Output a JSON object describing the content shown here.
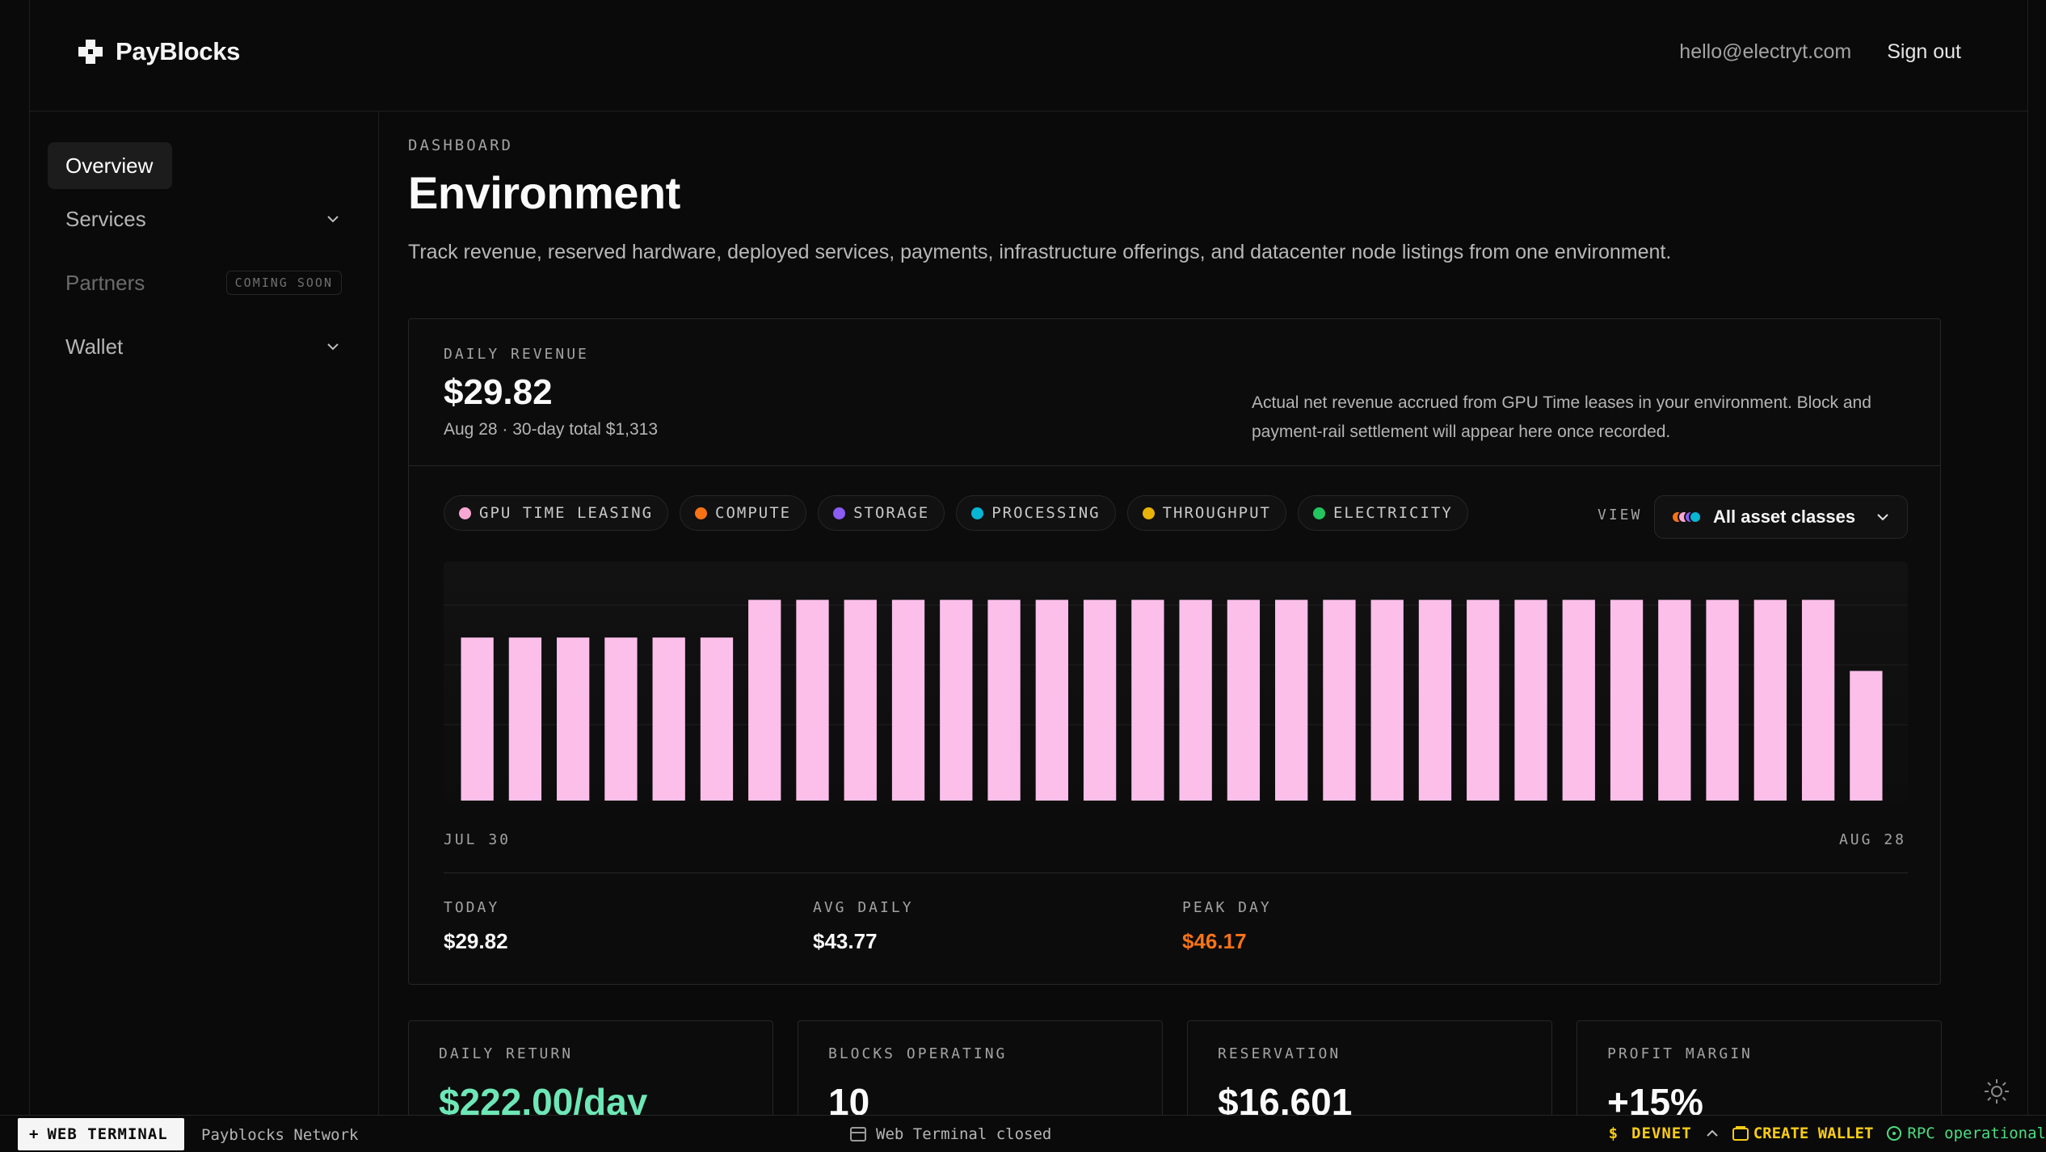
{
  "header": {
    "brand": "PayBlocks",
    "email": "hello@electryt.com",
    "sign_out": "Sign out"
  },
  "sidebar": {
    "items": [
      {
        "label": "Overview",
        "active": true
      },
      {
        "label": "Services",
        "expandable": true
      },
      {
        "label": "Partners",
        "badge": "COMING SOON",
        "disabled": true
      },
      {
        "label": "Wallet",
        "expandable": true
      }
    ]
  },
  "page": {
    "eyebrow": "DASHBOARD",
    "title": "Environment",
    "description": "Track revenue, reserved hardware, deployed services, payments, infrastructure offerings, and datacenter node listings from one environment."
  },
  "revenue": {
    "label": "DAILY REVENUE",
    "value": "$29.82",
    "subtitle": "Aug 28 · 30-day total $1,313",
    "note": "Actual net revenue accrued from GPU Time leases in your environment. Block and payment-rail settlement will appear here once recorded."
  },
  "legend": [
    {
      "label": "GPU TIME LEASING",
      "color": "#f9a8d4"
    },
    {
      "label": "COMPUTE",
      "color": "#f97316"
    },
    {
      "label": "STORAGE",
      "color": "#8b5cf6"
    },
    {
      "label": "PROCESSING",
      "color": "#06b6d4"
    },
    {
      "label": "THROUGHPUT",
      "color": "#eab308"
    },
    {
      "label": "ELECTRICITY",
      "color": "#22c55e"
    }
  ],
  "view": {
    "label": "VIEW",
    "selected": "All asset classes"
  },
  "chart_data": {
    "type": "bar",
    "x_start_label": "JUL 30",
    "x_end_label": "AUG 28",
    "bar_color": "#fbbfea",
    "ylim": [
      0,
      55
    ],
    "values": [
      37.5,
      37.5,
      37.5,
      37.5,
      37.5,
      37.5,
      46.17,
      46.17,
      46.17,
      46.17,
      46.17,
      46.17,
      46.17,
      46.17,
      46.17,
      46.17,
      46.17,
      46.17,
      46.17,
      46.17,
      46.17,
      46.17,
      46.17,
      46.17,
      46.17,
      46.17,
      46.17,
      46.17,
      46.17,
      29.82
    ]
  },
  "stats": {
    "today": {
      "label": "TODAY",
      "value": "$29.82"
    },
    "avg": {
      "label": "AVG DAILY",
      "value": "$43.77"
    },
    "peak": {
      "label": "PEAK DAY",
      "value": "$46.17"
    }
  },
  "kpis": [
    {
      "label": "DAILY RETURN",
      "value": "$222.00/day"
    },
    {
      "label": "BLOCKS OPERATING",
      "value": "10"
    },
    {
      "label": "RESERVATION",
      "value": "$16,601"
    },
    {
      "label": "PROFIT MARGIN",
      "value": "+15%"
    }
  ],
  "statusbar": {
    "terminal_button": "WEB TERMINAL",
    "network": "Payblocks Network",
    "terminal_status": "Web Terminal closed",
    "env": "DEVNET",
    "create_wallet": "CREATE WALLET",
    "rpc": "RPC operational"
  }
}
